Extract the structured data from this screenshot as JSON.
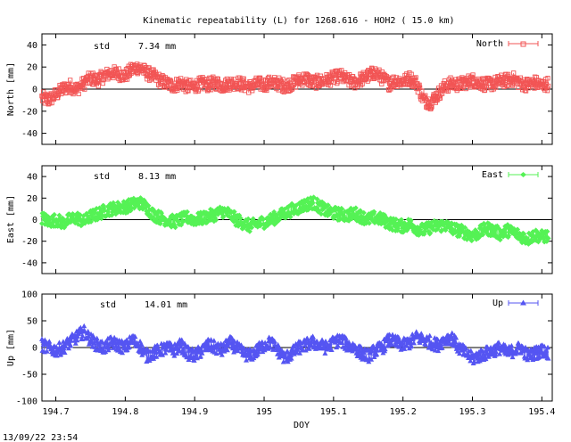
{
  "figure": {
    "title": "Kinematic repeatability (L) for 1268.616 - HOH2  ( 15.0 km)",
    "xlabel": "DOY",
    "timestamp": "13/09/22 23:54"
  },
  "chart_data": [
    {
      "type": "line",
      "panel": "north",
      "ylabel": "North [mm]",
      "legend": "North",
      "legend_position": "top-right",
      "std_label": "std",
      "std_value": "7.34 mm",
      "color": "#f25555",
      "marker": "square",
      "ylim": [
        -50,
        50
      ],
      "yticks": [
        -40,
        -20,
        0,
        20,
        40
      ],
      "xlim": [
        194.68,
        195.415
      ],
      "xticks": [
        "194.7",
        "194.8",
        "194.9",
        "195",
        "195.1",
        "195.2",
        "195.3",
        "195.4"
      ],
      "xtick_values": [
        194.7,
        194.8,
        194.9,
        195.0,
        195.1,
        195.2,
        195.3,
        195.4
      ],
      "grid": false,
      "series": [
        {
          "name": "North",
          "x": [
            194.68,
            194.69,
            194.7,
            194.71,
            194.72,
            194.73,
            194.74,
            194.75,
            194.76,
            194.77,
            194.78,
            194.79,
            194.8,
            194.81,
            194.82,
            194.83,
            194.84,
            194.85,
            194.86,
            194.87,
            194.88,
            194.89,
            194.9,
            194.91,
            194.92,
            194.93,
            194.94,
            194.95,
            194.96,
            194.97,
            194.98,
            194.99,
            195.0,
            195.01,
            195.02,
            195.03,
            195.04,
            195.05,
            195.06,
            195.07,
            195.08,
            195.09,
            195.1,
            195.11,
            195.12,
            195.13,
            195.14,
            195.15,
            195.16,
            195.17,
            195.18,
            195.19,
            195.2,
            195.21,
            195.22,
            195.23,
            195.24,
            195.25,
            195.26,
            195.27,
            195.28,
            195.29,
            195.3,
            195.31,
            195.32,
            195.33,
            195.34,
            195.35,
            195.36,
            195.37,
            195.38,
            195.39,
            195.4,
            195.41
          ],
          "y": [
            -8,
            -10,
            -5,
            0,
            3,
            0,
            5,
            10,
            8,
            12,
            15,
            14,
            12,
            18,
            20,
            15,
            12,
            8,
            5,
            3,
            6,
            2,
            3,
            5,
            4,
            6,
            3,
            5,
            6,
            4,
            2,
            5,
            4,
            6,
            5,
            3,
            5,
            8,
            10,
            6,
            7,
            8,
            10,
            12,
            8,
            6,
            9,
            12,
            15,
            10,
            5,
            8,
            7,
            10,
            5,
            -10,
            -12,
            -5,
            2,
            5,
            4,
            6,
            8,
            6,
            4,
            5,
            7,
            8,
            9,
            5,
            4,
            6,
            3,
            5
          ]
        }
      ]
    },
    {
      "type": "line",
      "panel": "east",
      "ylabel": "East [mm]",
      "legend": "East",
      "legend_position": "top-right",
      "std_label": "std",
      "std_value": "8.13 mm",
      "color": "#55f255",
      "marker": "diamond",
      "ylim": [
        -50,
        50
      ],
      "yticks": [
        -40,
        -20,
        0,
        20,
        40
      ],
      "xlim": [
        194.68,
        195.415
      ],
      "xticks": [
        "194.7",
        "194.8",
        "194.9",
        "195",
        "195.1",
        "195.2",
        "195.3",
        "195.4"
      ],
      "xtick_values": [
        194.7,
        194.8,
        194.9,
        195.0,
        195.1,
        195.2,
        195.3,
        195.4
      ],
      "grid": false,
      "series": [
        {
          "name": "East",
          "x": [
            194.68,
            194.69,
            194.7,
            194.71,
            194.72,
            194.73,
            194.74,
            194.75,
            194.76,
            194.77,
            194.78,
            194.79,
            194.8,
            194.81,
            194.82,
            194.83,
            194.84,
            194.85,
            194.86,
            194.87,
            194.88,
            194.89,
            194.9,
            194.91,
            194.92,
            194.93,
            194.94,
            194.95,
            194.96,
            194.97,
            194.98,
            194.99,
            195.0,
            195.01,
            195.02,
            195.03,
            195.04,
            195.05,
            195.06,
            195.07,
            195.08,
            195.09,
            195.1,
            195.11,
            195.12,
            195.13,
            195.14,
            195.15,
            195.16,
            195.17,
            195.18,
            195.19,
            195.2,
            195.21,
            195.22,
            195.23,
            195.24,
            195.25,
            195.26,
            195.27,
            195.28,
            195.29,
            195.3,
            195.31,
            195.32,
            195.33,
            195.34,
            195.35,
            195.36,
            195.37,
            195.38,
            195.39,
            195.4,
            195.41
          ],
          "y": [
            2,
            -2,
            0,
            -3,
            0,
            2,
            -2,
            3,
            5,
            8,
            10,
            11,
            12,
            14,
            16,
            12,
            5,
            2,
            0,
            -2,
            0,
            2,
            0,
            1,
            3,
            5,
            8,
            5,
            0,
            -3,
            -6,
            -4,
            -2,
            0,
            3,
            6,
            9,
            11,
            14,
            16,
            12,
            8,
            6,
            5,
            4,
            6,
            3,
            0,
            2,
            0,
            -3,
            -5,
            -6,
            -4,
            -8,
            -10,
            -7,
            -6,
            -5,
            -8,
            -10,
            -12,
            -15,
            -12,
            -8,
            -10,
            -13,
            -10,
            -12,
            -15,
            -18,
            -14,
            -16,
            -15
          ]
        }
      ]
    },
    {
      "type": "line",
      "panel": "up",
      "ylabel": "Up [mm]",
      "legend": "Up",
      "legend_position": "top-right",
      "std_label": "std",
      "std_value": "14.01 mm",
      "color": "#5555f2",
      "marker": "triangle",
      "ylim": [
        -100,
        100
      ],
      "yticks": [
        -100,
        -50,
        0,
        50,
        100
      ],
      "xlim": [
        194.68,
        195.415
      ],
      "xticks": [
        "194.7",
        "194.8",
        "194.9",
        "195",
        "195.1",
        "195.2",
        "195.3",
        "195.4"
      ],
      "xtick_values": [
        194.7,
        194.8,
        194.9,
        195.0,
        195.1,
        195.2,
        195.3,
        195.4
      ],
      "grid": false,
      "series": [
        {
          "name": "Up",
          "x": [
            194.68,
            194.69,
            194.7,
            194.71,
            194.72,
            194.73,
            194.74,
            194.75,
            194.76,
            194.77,
            194.78,
            194.79,
            194.8,
            194.81,
            194.82,
            194.83,
            194.84,
            194.85,
            194.86,
            194.87,
            194.88,
            194.89,
            194.9,
            194.91,
            194.92,
            194.93,
            194.94,
            194.95,
            194.96,
            194.97,
            194.98,
            194.99,
            195.0,
            195.01,
            195.02,
            195.03,
            195.04,
            195.05,
            195.06,
            195.07,
            195.08,
            195.09,
            195.1,
            195.11,
            195.12,
            195.13,
            195.14,
            195.15,
            195.16,
            195.17,
            195.18,
            195.19,
            195.2,
            195.21,
            195.22,
            195.23,
            195.24,
            195.25,
            195.26,
            195.27,
            195.28,
            195.29,
            195.3,
            195.31,
            195.32,
            195.33,
            195.34,
            195.35,
            195.36,
            195.37,
            195.38,
            195.39,
            195.4,
            195.41
          ],
          "y": [
            5,
            0,
            -5,
            0,
            10,
            20,
            30,
            15,
            5,
            0,
            10,
            5,
            0,
            15,
            5,
            -15,
            -10,
            -5,
            0,
            -5,
            5,
            -10,
            -15,
            -5,
            5,
            0,
            -5,
            10,
            0,
            -10,
            -15,
            -5,
            5,
            10,
            -5,
            -20,
            -10,
            0,
            5,
            10,
            5,
            0,
            10,
            15,
            5,
            0,
            -10,
            -15,
            -5,
            0,
            15,
            10,
            5,
            10,
            20,
            15,
            10,
            5,
            15,
            20,
            0,
            -10,
            -20,
            -15,
            -10,
            -5,
            0,
            -10,
            -5,
            0,
            -15,
            -10,
            -5,
            -10
          ]
        }
      ]
    }
  ]
}
